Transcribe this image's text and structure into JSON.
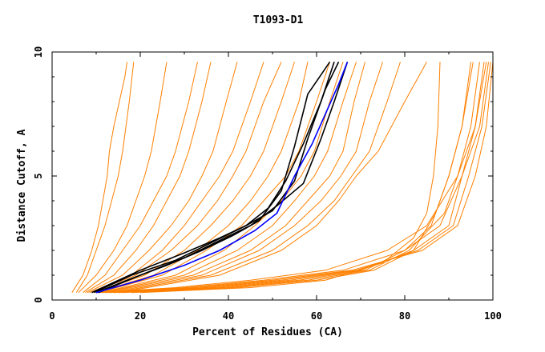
{
  "chart_data": {
    "type": "line",
    "title": "T1093-D1",
    "xlabel": "Percent of Residues (CA)",
    "ylabel": "Distance Cutoff, A",
    "xlim": [
      0,
      100
    ],
    "ylim": [
      0,
      10
    ],
    "x_ticks": [
      "0",
      "20",
      "40",
      "60",
      "80",
      "100"
    ],
    "y_ticks": [
      "0",
      "5",
      "10"
    ],
    "grid": false,
    "colors": {
      "models": "#ff8000",
      "highlight_black": "#000000",
      "highlight_blue": "#0000ff"
    },
    "series": [
      {
        "color": "#ff8000",
        "x": [
          4.5,
          7,
          9,
          10.5,
          11.5,
          12.5,
          13,
          14,
          16.5,
          17
        ],
        "y": [
          0.3,
          1.0,
          2.0,
          3.0,
          4.0,
          5.0,
          6.0,
          7.0,
          9.0,
          9.6
        ]
      },
      {
        "color": "#ff8000",
        "x": [
          5.5,
          8,
          10,
          12,
          13.5,
          15,
          16,
          17.5,
          18.5
        ],
        "y": [
          0.3,
          1.0,
          2.0,
          3.0,
          4.0,
          5.0,
          6.0,
          8.0,
          9.6
        ]
      },
      {
        "color": "#ff8000",
        "x": [
          6,
          10,
          14,
          17,
          19,
          21,
          22.5,
          24.5,
          26
        ],
        "y": [
          0.3,
          1.0,
          2.0,
          3.0,
          4.0,
          5.0,
          6.0,
          8.0,
          9.6
        ]
      },
      {
        "color": "#ff8000",
        "x": [
          7,
          12,
          16,
          20,
          23,
          26,
          28,
          31,
          33
        ],
        "y": [
          0.3,
          1.0,
          2.0,
          3.0,
          4.0,
          5.0,
          6.0,
          8.0,
          9.6
        ]
      },
      {
        "color": "#ff8000",
        "x": [
          7.5,
          14,
          19,
          23,
          26,
          29,
          31,
          34,
          36
        ],
        "y": [
          0.3,
          1.0,
          2.0,
          3.0,
          4.0,
          5.0,
          6.0,
          8.0,
          9.6
        ]
      },
      {
        "color": "#ff8000",
        "x": [
          8,
          16,
          22,
          27,
          31,
          34,
          36.5,
          39.5,
          42
        ],
        "y": [
          0.3,
          1.0,
          2.0,
          3.0,
          4.0,
          5.0,
          6.0,
          8.0,
          9.6
        ]
      },
      {
        "color": "#ff8000",
        "x": [
          8.5,
          18,
          25,
          30,
          34,
          38,
          41,
          45,
          48
        ],
        "y": [
          0.3,
          1.0,
          2.0,
          3.0,
          4.0,
          5.0,
          6.0,
          8.0,
          9.6
        ]
      },
      {
        "color": "#ff8000",
        "x": [
          9,
          19,
          27,
          33,
          37.5,
          41,
          44,
          48,
          52
        ],
        "y": [
          0.3,
          1.0,
          2.0,
          3.0,
          4.0,
          5.0,
          6.0,
          8.0,
          9.6
        ]
      },
      {
        "color": "#ff8000",
        "x": [
          9.5,
          21,
          30,
          36,
          41,
          45,
          48,
          52,
          55
        ],
        "y": [
          0.3,
          1.0,
          2.0,
          3.0,
          4.0,
          5.0,
          6.0,
          8.0,
          9.6
        ]
      },
      {
        "color": "#ff8000",
        "x": [
          10,
          23,
          33,
          40,
          45,
          49,
          52,
          56,
          58
        ],
        "y": [
          0.3,
          1.0,
          2.0,
          3.0,
          4.0,
          5.0,
          6.0,
          8.0,
          9.6
        ]
      },
      {
        "color": "#ff8000",
        "x": [
          10.5,
          25,
          35,
          43,
          48,
          53,
          56,
          60,
          63
        ],
        "y": [
          0.3,
          1.0,
          2.0,
          3.0,
          4.0,
          5.0,
          6.0,
          8.0,
          9.6
        ]
      },
      {
        "color": "#ff8000",
        "x": [
          11,
          28,
          39,
          46,
          52,
          56.5,
          59.5,
          63,
          66
        ],
        "y": [
          0.3,
          1.0,
          2.0,
          3.0,
          4.0,
          5.0,
          6.0,
          8.0,
          9.6
        ]
      },
      {
        "color": "#ff8000",
        "x": [
          11.5,
          30,
          42,
          50,
          55,
          59.5,
          62.5,
          66,
          69
        ],
        "y": [
          0.3,
          1.0,
          2.0,
          3.0,
          4.0,
          5.0,
          6.0,
          8.0,
          9.6
        ]
      },
      {
        "color": "#ff8000",
        "x": [
          12,
          32,
          45,
          53,
          58,
          63,
          66,
          68.5,
          71
        ],
        "y": [
          0.3,
          1.0,
          2.0,
          3.0,
          4.0,
          5.0,
          6.0,
          8.0,
          9.6
        ]
      },
      {
        "color": "#ff8000",
        "x": [
          13,
          34,
          47,
          55,
          61,
          65.5,
          69,
          72,
          75
        ],
        "y": [
          0.3,
          1.0,
          2.0,
          3.0,
          4.0,
          5.0,
          6.0,
          8.0,
          9.6
        ]
      },
      {
        "color": "#ff8000",
        "x": [
          14,
          36,
          50,
          58,
          64,
          68,
          72,
          76,
          79
        ],
        "y": [
          0.3,
          1.0,
          2.0,
          3.0,
          4.0,
          5.0,
          6.0,
          8.0,
          9.6
        ]
      },
      {
        "color": "#ff8000",
        "x": [
          15,
          38,
          52,
          60,
          65,
          69,
          74,
          80,
          85
        ],
        "y": [
          0.3,
          1.0,
          2.0,
          3.0,
          4.0,
          5.0,
          6.0,
          8.0,
          9.6
        ]
      },
      {
        "color": "#ff8000",
        "x": [
          20,
          45,
          62,
          75,
          82,
          85,
          86.5,
          87.5,
          88
        ],
        "y": [
          0.3,
          0.5,
          0.8,
          1.5,
          2.5,
          3.5,
          5.0,
          7.0,
          9.6
        ]
      },
      {
        "color": "#ff8000",
        "x": [
          18,
          42,
          60,
          73,
          82,
          87,
          90,
          93,
          95
        ],
        "y": [
          0.3,
          0.5,
          0.8,
          1.2,
          2.0,
          3.5,
          5.0,
          7.0,
          9.6
        ]
      },
      {
        "color": "#ff8000",
        "x": [
          16,
          40,
          58,
          72,
          81,
          89,
          92,
          95,
          97
        ],
        "y": [
          0.3,
          0.5,
          0.8,
          1.2,
          2.0,
          3.5,
          5.0,
          7.0,
          9.6
        ]
      },
      {
        "color": "#ff8000",
        "x": [
          15,
          38,
          56,
          71,
          80,
          86,
          90,
          93,
          95.5
        ],
        "y": [
          0.3,
          0.5,
          0.8,
          1.2,
          2.0,
          3.0,
          5.0,
          7.0,
          9.6
        ]
      },
      {
        "color": "#ff8000",
        "x": [
          14,
          36,
          54,
          70,
          82,
          90,
          93,
          96,
          98
        ],
        "y": [
          0.3,
          0.5,
          0.8,
          1.2,
          2.0,
          3.0,
          5.0,
          7.0,
          9.6
        ]
      },
      {
        "color": "#ff8000",
        "x": [
          13,
          34,
          52,
          69,
          83,
          91,
          94.5,
          97.5,
          99.5
        ],
        "y": [
          0.3,
          0.5,
          0.8,
          1.2,
          2.0,
          3.0,
          5.0,
          7.0,
          9.6
        ]
      },
      {
        "color": "#ff8000",
        "x": [
          12,
          32,
          50,
          68,
          84,
          92,
          96,
          98.5,
          100
        ],
        "y": [
          0.3,
          0.5,
          0.8,
          1.2,
          2.0,
          3.0,
          5.0,
          7.0,
          9.6
        ]
      },
      {
        "color": "#ff8000",
        "x": [
          11,
          30,
          48,
          66,
          80,
          88,
          93,
          97,
          99
        ],
        "y": [
          0.3,
          0.5,
          0.8,
          1.2,
          2.0,
          3.0,
          5.0,
          7.0,
          9.6
        ]
      },
      {
        "color": "#ff8000",
        "x": [
          10,
          28,
          45,
          62,
          76,
          85,
          92,
          96,
          98.5
        ],
        "y": [
          0.3,
          0.5,
          0.8,
          1.2,
          2.0,
          3.0,
          5.0,
          7.0,
          9.6
        ]
      },
      {
        "color": "#000000",
        "x": [
          9,
          20,
          30,
          38,
          44,
          49,
          53,
          57,
          61,
          64
        ],
        "y": [
          0.3,
          1.2,
          1.9,
          2.5,
          3.0,
          3.7,
          4.8,
          6.3,
          8.0,
          9.6
        ]
      },
      {
        "color": "#000000",
        "x": [
          9.5,
          18,
          28,
          36,
          44,
          50,
          55,
          58,
          62,
          65
        ],
        "y": [
          0.3,
          1.0,
          1.6,
          2.3,
          3.0,
          3.6,
          4.8,
          6.5,
          8.5,
          9.6
        ]
      },
      {
        "color": "#000000",
        "x": [
          10,
          17,
          26,
          34,
          41,
          47,
          52,
          55,
          58,
          63
        ],
        "y": [
          0.3,
          0.8,
          1.4,
          2.0,
          2.6,
          3.2,
          4.4,
          6.2,
          8.3,
          9.6
        ]
      },
      {
        "color": "#000000",
        "x": [
          10.5,
          20,
          30,
          38,
          45,
          51,
          57,
          61,
          64,
          67
        ],
        "y": [
          0.3,
          1.0,
          1.7,
          2.4,
          3.0,
          3.8,
          4.7,
          6.5,
          8.0,
          9.6
        ]
      },
      {
        "color": "#0000ff",
        "x": [
          10,
          20,
          30,
          38,
          46,
          51,
          55,
          59,
          62,
          65,
          67
        ],
        "y": [
          0.3,
          0.8,
          1.4,
          2.0,
          2.8,
          3.5,
          5.0,
          6.3,
          7.5,
          8.7,
          9.6
        ]
      }
    ]
  }
}
